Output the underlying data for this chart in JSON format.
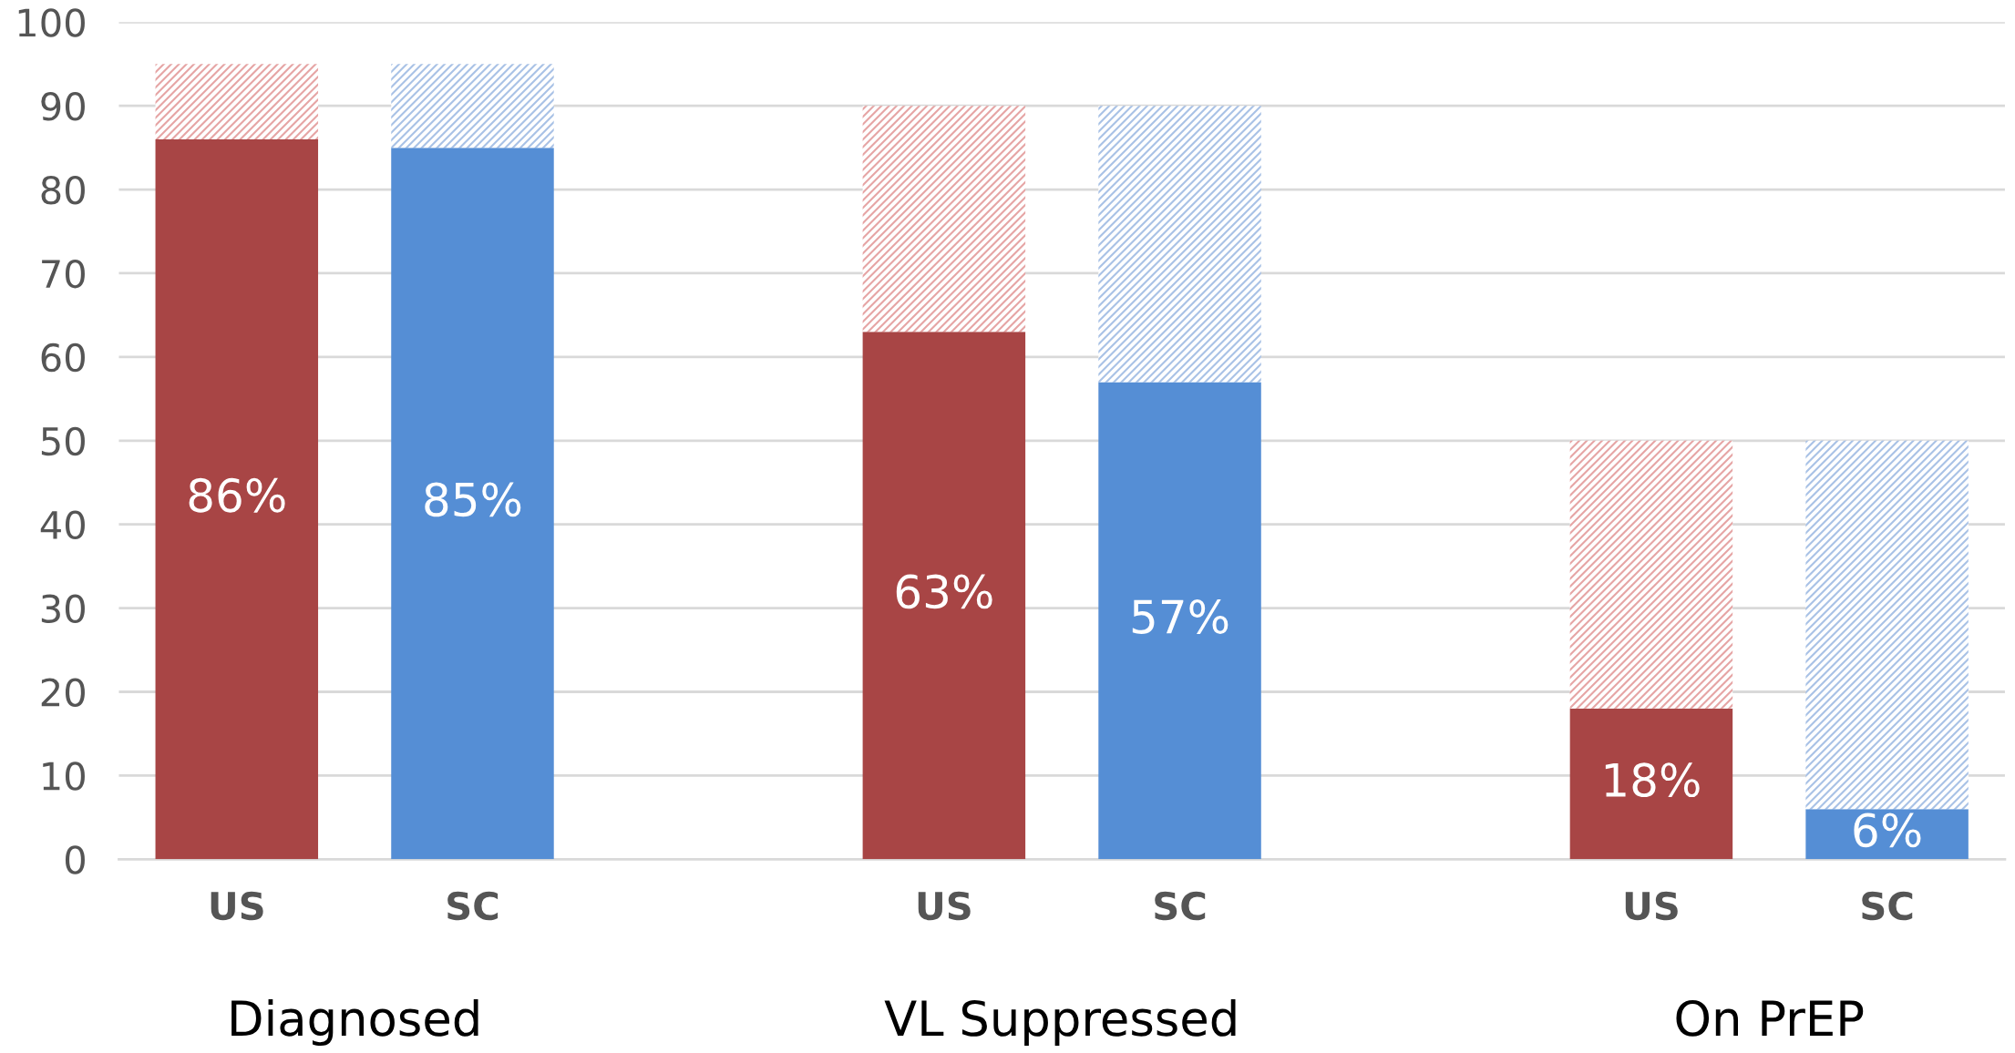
{
  "chart_data": {
    "type": "bar",
    "stacked": true,
    "categories": [
      "US",
      "SC",
      null,
      "US",
      "SC",
      null,
      "US",
      "SC"
    ],
    "series": [
      {
        "colors": [
          "#a84545",
          "#558ed5",
          null,
          "#a84545",
          "#558ed5",
          null,
          "#a84545",
          "#558ed5"
        ],
        "values": [
          86,
          85,
          null,
          63,
          57,
          null,
          18,
          6
        ],
        "value_labels": [
          "86%",
          "85%",
          null,
          "63%",
          "57%",
          null,
          "18%",
          "6%"
        ]
      },
      {
        "colors": [
          "#e6a5a5",
          "#a9c2e6",
          null,
          "#e6a5a5",
          "#a9c2e6",
          null,
          "#e6a5a5",
          "#a9c2e6"
        ],
        "values": [
          9,
          10,
          null,
          27,
          33,
          null,
          32,
          44
        ]
      }
    ],
    "ylim": [
      0,
      100
    ],
    "yticks": [
      0,
      10,
      20,
      30,
      40,
      50,
      60,
      70,
      80,
      90,
      100
    ],
    "grid": "y",
    "annotations": [
      "Diagnosed",
      "VL Suppressed",
      "On PrEP"
    ]
  }
}
